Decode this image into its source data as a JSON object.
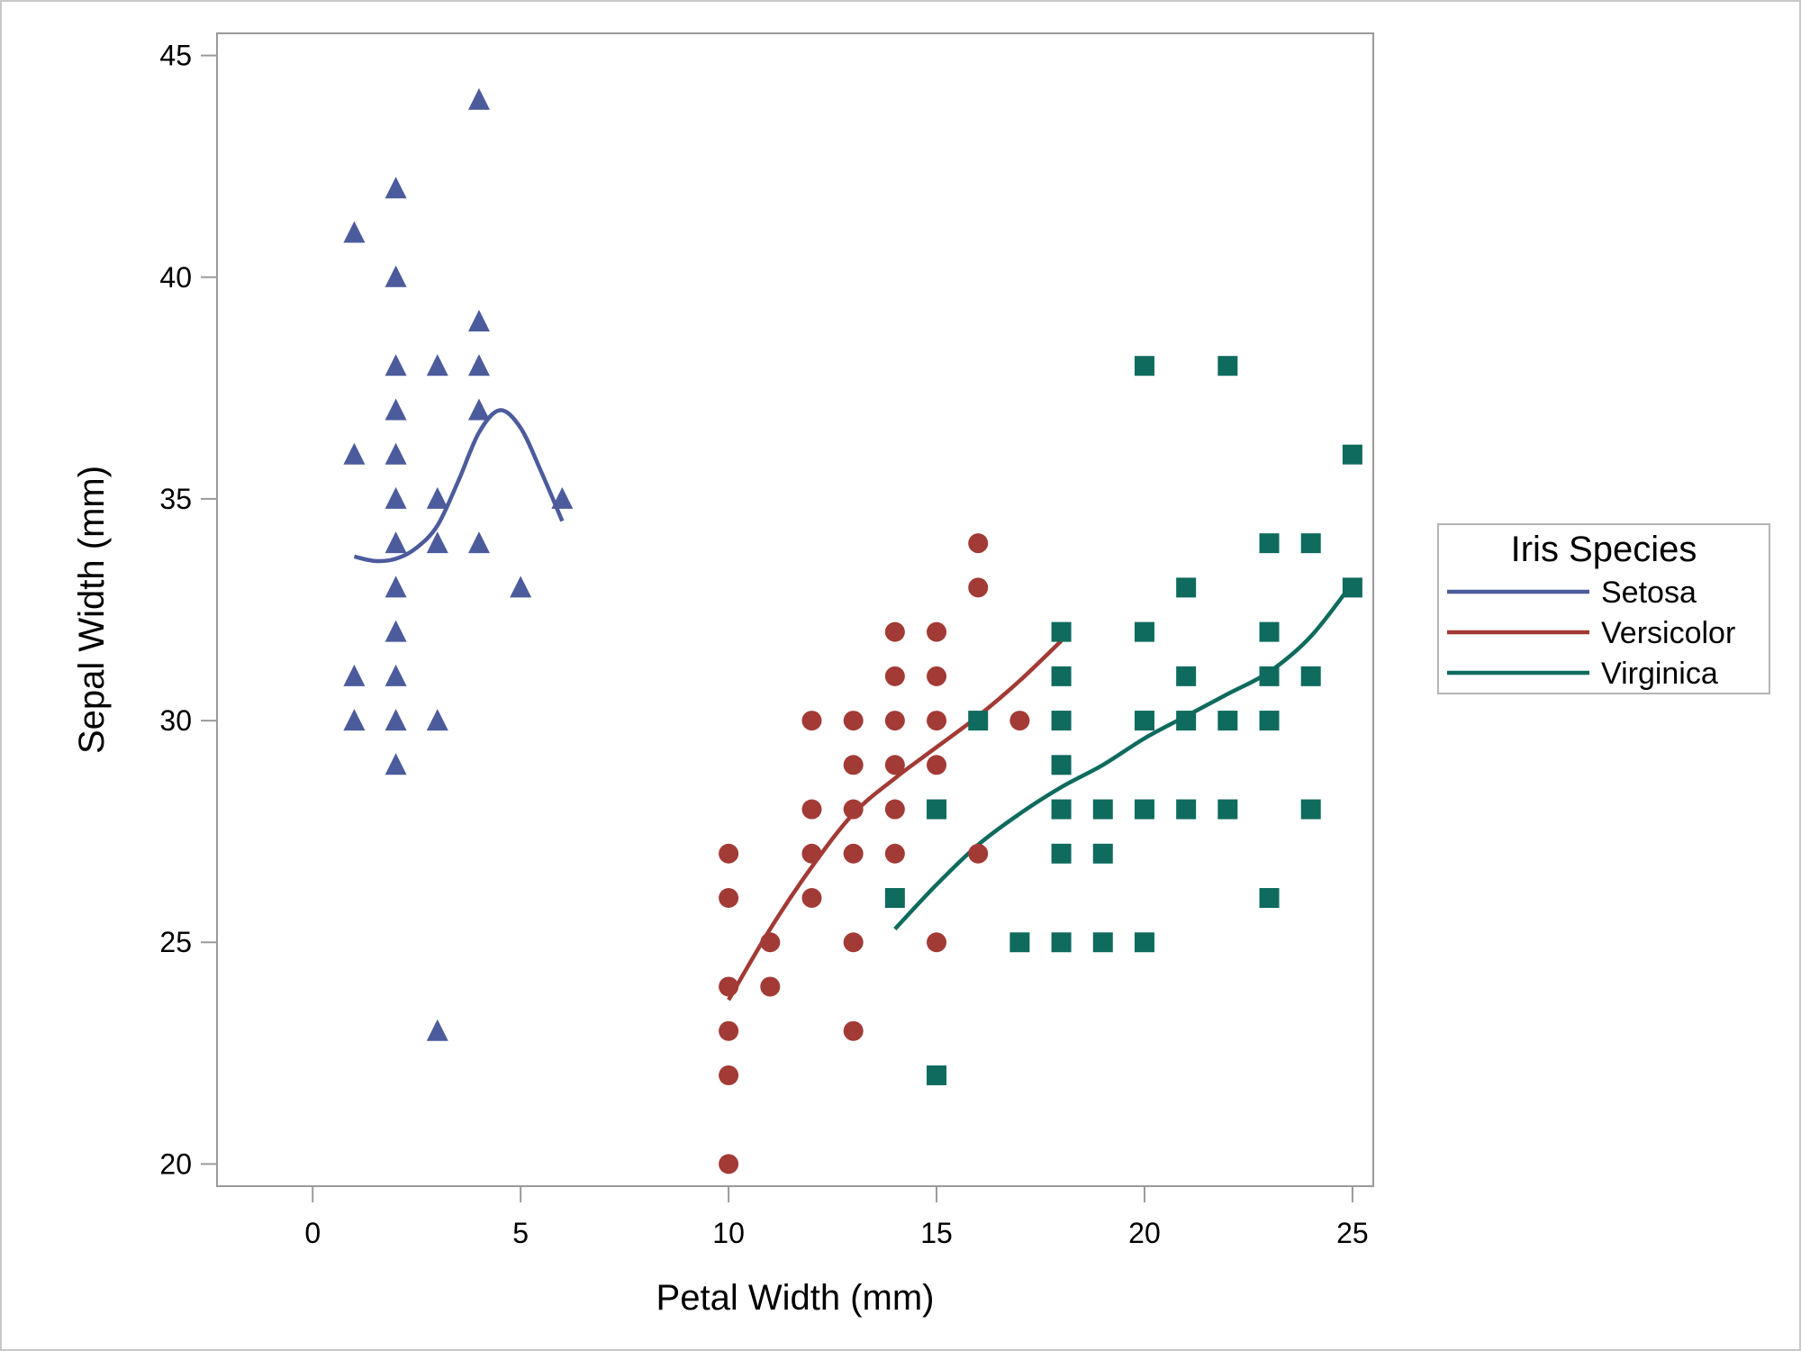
{
  "chart_data": {
    "type": "scatter",
    "title": "",
    "xlabel": "Petal Width (mm)",
    "ylabel": "Sepal Width (mm)",
    "xlim": [
      -2.3,
      25.5
    ],
    "ylim": [
      19.5,
      45.5
    ],
    "xticks": [
      "0",
      "5",
      "10",
      "15",
      "20",
      "25"
    ],
    "yticks": [
      "20",
      "25",
      "30",
      "35",
      "40",
      "45"
    ],
    "grid": false,
    "legend": {
      "title": "Iris Species",
      "placement": "right"
    },
    "series": [
      {
        "name": "Setosa",
        "color": "#4c5b9c",
        "marker": "triangle",
        "points": [
          [
            1,
            41
          ],
          [
            1,
            36
          ],
          [
            1,
            31
          ],
          [
            1,
            30
          ],
          [
            2,
            42
          ],
          [
            2,
            40
          ],
          [
            2,
            38
          ],
          [
            2,
            37
          ],
          [
            2,
            36
          ],
          [
            2,
            35
          ],
          [
            2,
            34
          ],
          [
            2,
            33
          ],
          [
            2,
            32
          ],
          [
            2,
            31
          ],
          [
            2,
            30
          ],
          [
            2,
            29
          ],
          [
            3,
            38
          ],
          [
            3,
            35
          ],
          [
            3,
            34
          ],
          [
            3,
            30
          ],
          [
            3,
            23
          ],
          [
            4,
            44
          ],
          [
            4,
            39
          ],
          [
            4,
            38
          ],
          [
            4,
            37
          ],
          [
            4,
            34
          ],
          [
            5,
            33
          ],
          [
            6,
            35
          ]
        ],
        "fit": [
          [
            1,
            33.7
          ],
          [
            1.5,
            33.6
          ],
          [
            2,
            33.65
          ],
          [
            2.5,
            33.9
          ],
          [
            3,
            34.4
          ],
          [
            3.5,
            35.4
          ],
          [
            4,
            36.5
          ],
          [
            4.5,
            37.0
          ],
          [
            5,
            36.6
          ],
          [
            5.5,
            35.6
          ],
          [
            6,
            34.5
          ]
        ]
      },
      {
        "name": "Versicolor",
        "color": "#a23a35",
        "marker": "circle",
        "points": [
          [
            10,
            27
          ],
          [
            10,
            26
          ],
          [
            10,
            24
          ],
          [
            10,
            23
          ],
          [
            10,
            22
          ],
          [
            10,
            20
          ],
          [
            11,
            25
          ],
          [
            11,
            24
          ],
          [
            12,
            30
          ],
          [
            12,
            28
          ],
          [
            12,
            27
          ],
          [
            12,
            26
          ],
          [
            13,
            30
          ],
          [
            13,
            29
          ],
          [
            13,
            28
          ],
          [
            13,
            27
          ],
          [
            13,
            25
          ],
          [
            13,
            23
          ],
          [
            14,
            32
          ],
          [
            14,
            31
          ],
          [
            14,
            30
          ],
          [
            14,
            29
          ],
          [
            14,
            28
          ],
          [
            14,
            27
          ],
          [
            15,
            32
          ],
          [
            15,
            31
          ],
          [
            15,
            30
          ],
          [
            15,
            29
          ],
          [
            15,
            25
          ],
          [
            16,
            34
          ],
          [
            16,
            33
          ],
          [
            16,
            27
          ],
          [
            17,
            30
          ]
        ],
        "fit": [
          [
            10,
            23.7
          ],
          [
            11,
            25.3
          ],
          [
            12,
            26.7
          ],
          [
            13,
            27.9
          ],
          [
            14,
            28.7
          ],
          [
            15,
            29.4
          ],
          [
            16,
            30.1
          ],
          [
            17,
            30.9
          ],
          [
            18,
            31.8
          ]
        ]
      },
      {
        "name": "Virginica",
        "color": "#0e6b5e",
        "marker": "square",
        "points": [
          [
            14,
            26
          ],
          [
            15,
            28
          ],
          [
            15,
            22
          ],
          [
            16,
            30
          ],
          [
            17,
            25
          ],
          [
            18,
            32
          ],
          [
            18,
            31
          ],
          [
            18,
            30
          ],
          [
            18,
            29
          ],
          [
            18,
            28
          ],
          [
            18,
            27
          ],
          [
            18,
            25
          ],
          [
            19,
            28
          ],
          [
            19,
            27
          ],
          [
            19,
            25
          ],
          [
            20,
            38
          ],
          [
            20,
            32
          ],
          [
            20,
            30
          ],
          [
            20,
            28
          ],
          [
            20,
            25
          ],
          [
            21,
            33
          ],
          [
            21,
            31
          ],
          [
            21,
            30
          ],
          [
            21,
            28
          ],
          [
            22,
            38
          ],
          [
            22,
            30
          ],
          [
            22,
            28
          ],
          [
            23,
            34
          ],
          [
            23,
            32
          ],
          [
            23,
            31
          ],
          [
            23,
            30
          ],
          [
            23,
            26
          ],
          [
            24,
            34
          ],
          [
            24,
            31
          ],
          [
            24,
            28
          ],
          [
            25,
            36
          ],
          [
            25,
            33
          ]
        ],
        "fit": [
          [
            14,
            25.3
          ],
          [
            15,
            26.3
          ],
          [
            16,
            27.2
          ],
          [
            17,
            27.9
          ],
          [
            18,
            28.5
          ],
          [
            19,
            29.0
          ],
          [
            20,
            29.6
          ],
          [
            21,
            30.1
          ],
          [
            22,
            30.6
          ],
          [
            23,
            31.1
          ],
          [
            24,
            31.9
          ],
          [
            25,
            33.1
          ]
        ]
      }
    ]
  }
}
